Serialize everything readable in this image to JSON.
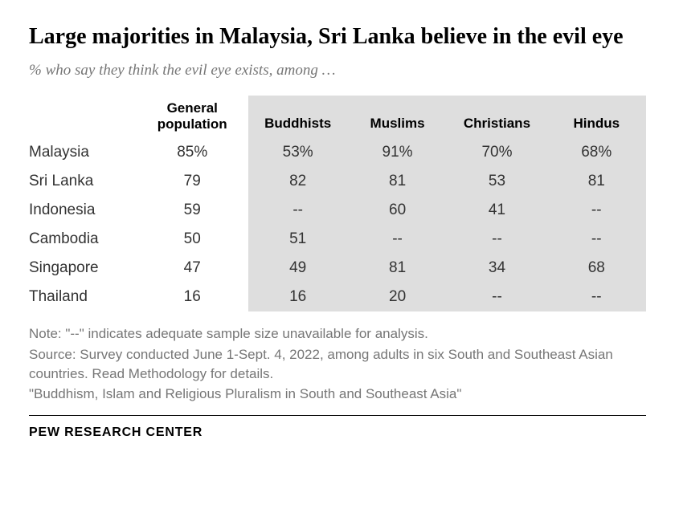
{
  "title": "Large majorities in Malaysia, Sri Lanka believe in the evil eye",
  "subtitle": "% who say they think the evil eye exists, among …",
  "columns": {
    "general_line1": "General",
    "general_line2": "population",
    "buddhists": "Buddhists",
    "muslims": "Muslims",
    "christians": "Christians",
    "hindus": "Hindus"
  },
  "rows": [
    {
      "country": "Malaysia",
      "general": "85%",
      "buddhists": "53%",
      "muslims": "91%",
      "christians": "70%",
      "hindus": "68%"
    },
    {
      "country": "Sri Lanka",
      "general": "79",
      "buddhists": "82",
      "muslims": "81",
      "christians": "53",
      "hindus": "81"
    },
    {
      "country": "Indonesia",
      "general": "59",
      "buddhists": "--",
      "muslims": "60",
      "christians": "41",
      "hindus": "--"
    },
    {
      "country": "Cambodia",
      "general": "50",
      "buddhists": "51",
      "muslims": "--",
      "christians": "--",
      "hindus": "--"
    },
    {
      "country": "Singapore",
      "general": "47",
      "buddhists": "49",
      "muslims": "81",
      "christians": "34",
      "hindus": "68"
    },
    {
      "country": "Thailand",
      "general": "16",
      "buddhists": "16",
      "muslims": "20",
      "christians": "--",
      "hindus": "--"
    }
  ],
  "notes": {
    "note": "Note: \"--\" indicates adequate sample size unavailable for analysis.",
    "source": "Source: Survey conducted June 1-Sept. 4, 2022, among adults in six South and Southeast Asian countries. Read Methodology for details.",
    "report": "\"Buddhism, Islam and Religious Pluralism in South and Southeast Asia\""
  },
  "brand": "PEW RESEARCH CENTER",
  "styling": {
    "background_color": "#ffffff",
    "shaded_bg": "#dedede",
    "title_color": "#000000",
    "subtitle_color": "#767676",
    "cell_text_color": "#333333",
    "notes_color": "#767676",
    "title_fontsize": 28,
    "subtitle_fontsize": 19,
    "header_fontsize": 17,
    "cell_fontsize": 19,
    "notes_fontsize": 17,
    "brand_fontsize": 16
  }
}
